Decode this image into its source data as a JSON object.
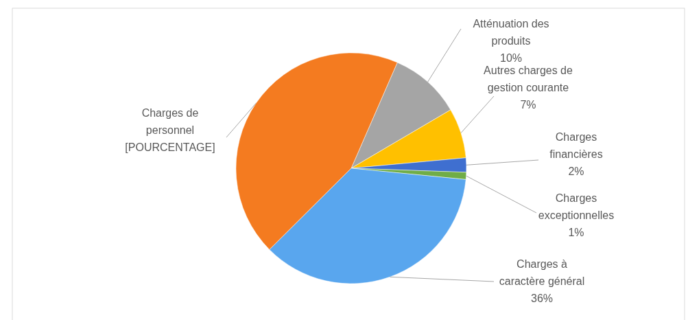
{
  "chart_data": {
    "type": "pie",
    "categories": [
      "Atténuation des produits",
      "Autres charges de gestion courante",
      "Charges financières",
      "Charges exceptionnelles",
      "Charges à caractère général",
      "Charges de personnel"
    ],
    "values": [
      10,
      7,
      2,
      1,
      36,
      44
    ],
    "colors": [
      "#a5a5a5",
      "#ffc000",
      "#3f6fd0",
      "#70ad47",
      "#59a6ee",
      "#f47b20"
    ],
    "value_labels": [
      "10%",
      "7%",
      "2%",
      "1%",
      "36%",
      "[POURCENTAGE]"
    ]
  }
}
